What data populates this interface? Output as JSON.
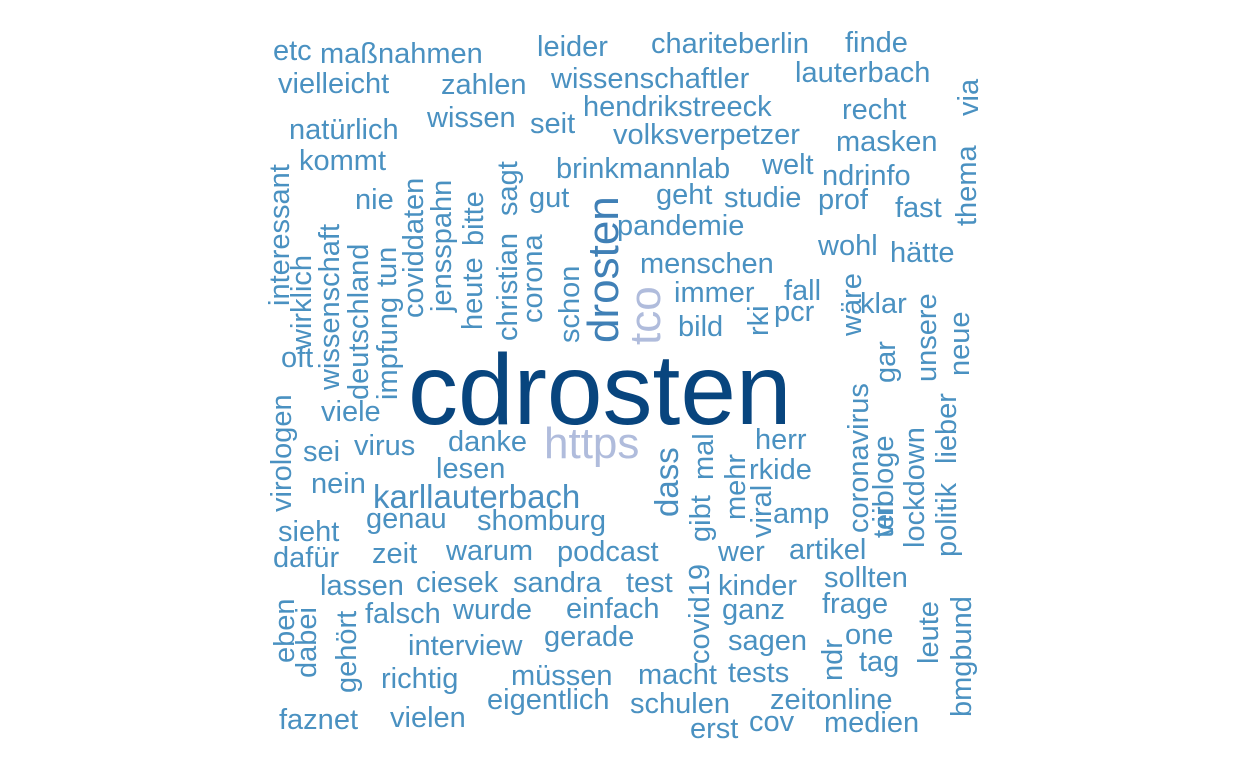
{
  "wordcloud": {
    "words": [
      "cdrosten",
      "https",
      "tco",
      "drosten",
      "karllauterbach",
      "dass",
      "menschen",
      "etc",
      "maßnahmen",
      "leider",
      "chariteberlin",
      "finde",
      "vielleicht",
      "zahlen",
      "wissenschaftler",
      "lauterbach",
      "via",
      "hendrikstreeck",
      "recht",
      "wissen",
      "seit",
      "natürlich",
      "volksverpetzer",
      "masken",
      "thema",
      "kommt",
      "brinkmannlab",
      "welt",
      "ndrinfo",
      "interessant",
      "geht",
      "studie",
      "prof",
      "fast",
      "nie",
      "coviddaten",
      "jensspahn",
      "sagt",
      "gut",
      "pandemie",
      "wohl",
      "hätte",
      "wissenschaft",
      "heute",
      "bitte",
      "christian",
      "corona",
      "schon",
      "wirklich",
      "deutschland",
      "impfung",
      "tun",
      "immer",
      "fall",
      "klar",
      "wäre",
      "rki",
      "bild",
      "pcr",
      "unsere",
      "neue",
      "oft",
      "virologen",
      "viele",
      "sei",
      "virus",
      "danke",
      "herr",
      "mal",
      "mehr",
      "rkide",
      "lesen",
      "nein",
      "coronavirus",
      "virologe",
      "gar",
      "teil",
      "lockdown",
      "lieber",
      "politik",
      "genau",
      "shomburg",
      "gibt",
      "viral",
      "amp",
      "sieht",
      "dafür",
      "zeit",
      "warum",
      "podcast",
      "wer",
      "artikel",
      "lassen",
      "ciesek",
      "sandra",
      "test",
      "covid19",
      "kinder",
      "sollten",
      "eben",
      "dabei",
      "falsch",
      "wurde",
      "einfach",
      "ganz",
      "frage",
      "gehört",
      "gerade",
      "one",
      "leute",
      "bmgbund",
      "interview",
      "sagen",
      "ndr",
      "tag",
      "richtig",
      "müssen",
      "macht",
      "tests",
      "eigentlich",
      "schulen",
      "zeitonline",
      "faznet",
      "vielen",
      "erst",
      "cov",
      "medien"
    ]
  }
}
